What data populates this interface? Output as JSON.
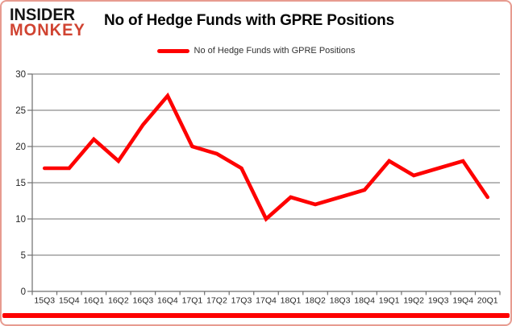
{
  "brand": {
    "line1": "INSIDER",
    "line2": "MONKEY"
  },
  "header": {
    "title": "No of Hedge Funds with GPRE Positions"
  },
  "legend": {
    "label": "No of Hedge Funds with GPRE Positions"
  },
  "colors": {
    "series_red": "#fe0000",
    "accent_bar_red": "#fd0000",
    "frame_border_pink": "#e79b90",
    "brand_monkey_red": "#d04331",
    "brand_insider_black": "#141414",
    "gridline_grey": "#8e8e8e",
    "axis_grey": "#6f6f6f",
    "tick_text": "#262626"
  },
  "chart_data": {
    "type": "line",
    "title": "No of Hedge Funds with GPRE Positions",
    "categories": [
      "15Q3",
      "15Q4",
      "16Q1",
      "16Q2",
      "16Q3",
      "16Q4",
      "17Q1",
      "17Q2",
      "17Q3",
      "17Q4",
      "18Q1",
      "18Q2",
      "18Q3",
      "18Q4",
      "19Q1",
      "19Q2",
      "19Q3",
      "19Q4",
      "20Q1"
    ],
    "series": [
      {
        "name": "No of Hedge Funds with GPRE Positions",
        "values": [
          17,
          17,
          21,
          18,
          23,
          27,
          20,
          19,
          17,
          10,
          13,
          12,
          13,
          14,
          18,
          16,
          17,
          18,
          13
        ],
        "color": "#fe0000"
      }
    ],
    "xlabel": "",
    "ylabel": "",
    "ylim": [
      0,
      30
    ],
    "yticks": [
      0,
      5,
      10,
      15,
      20,
      25,
      30
    ],
    "grid": true,
    "legend_position": "top"
  }
}
